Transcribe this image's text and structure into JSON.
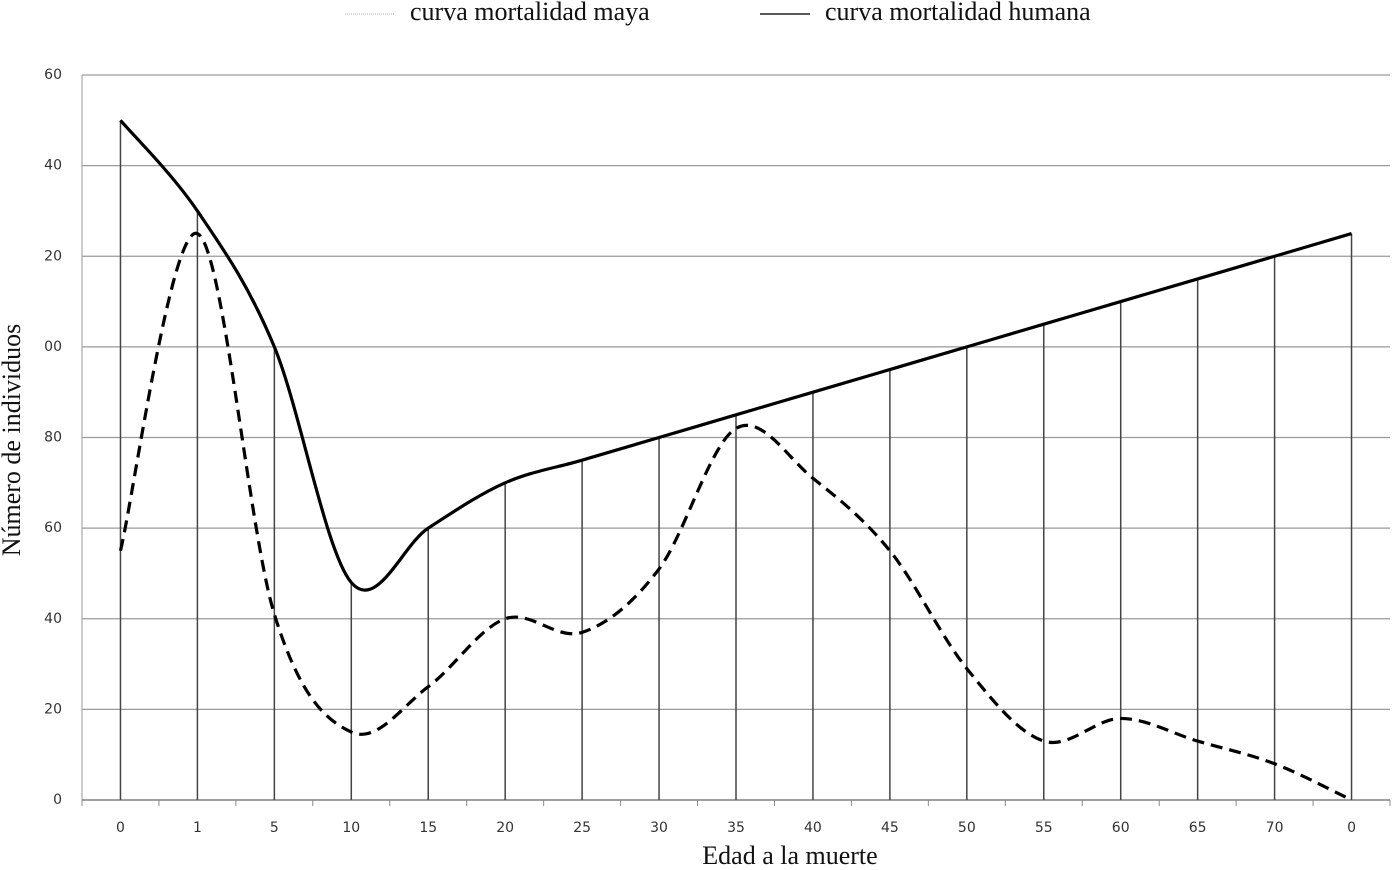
{
  "chart_data": {
    "type": "line",
    "x_label": "Edad a la muerte",
    "y_label": "Número de individuos",
    "categories": [
      "0",
      "1",
      "5",
      "10",
      "15",
      "20",
      "25",
      "30",
      "35",
      "40",
      "45",
      "50",
      "55",
      "60",
      "65",
      "70",
      "0"
    ],
    "series": [
      {
        "name": "curva mortalidad maya",
        "color": "#000000",
        "line_style": "dashed",
        "values": [
          55,
          125,
          41,
          15,
          25,
          40,
          37,
          51,
          82,
          71,
          55,
          29,
          13,
          18,
          13,
          8,
          0
        ]
      },
      {
        "name": "curva mortalidad humana",
        "color": "#000000",
        "line_style": "solid",
        "drop_lines": true,
        "values": [
          150,
          130,
          100,
          48,
          60,
          70,
          75,
          80,
          85,
          90,
          95,
          100,
          105,
          110,
          115,
          120,
          125
        ]
      }
    ],
    "ylim": [
      0,
      160
    ],
    "yticks": [
      0,
      20,
      40,
      60,
      80,
      {
        "value": 100,
        "label": "00"
      },
      {
        "value": 120,
        "label": "20"
      },
      {
        "value": 140,
        "label": "40"
      },
      {
        "value": 160,
        "label": "60"
      }
    ],
    "grid": true,
    "legend": "top"
  }
}
